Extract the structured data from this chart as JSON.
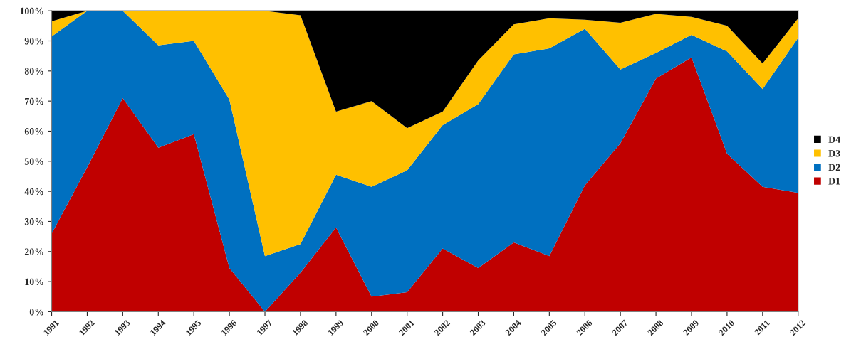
{
  "chart_data": {
    "type": "area",
    "stacked": true,
    "categories": [
      "1991",
      "1992",
      "1993",
      "1994",
      "1995",
      "1996",
      "1997",
      "1998",
      "1999",
      "2000",
      "2001",
      "2002",
      "2003",
      "2004",
      "2005",
      "2006",
      "2007",
      "2008",
      "2009",
      "2010",
      "2011",
      "2012"
    ],
    "series": [
      {
        "name": "D1",
        "color": "#c00000",
        "values": [
          26,
          48,
          71,
          54.5,
          59,
          14.5,
          0,
          13,
          28,
          5,
          6.5,
          21,
          14.5,
          23,
          18.5,
          42,
          56,
          77.5,
          84.5,
          52.5,
          41.5,
          39.5
        ]
      },
      {
        "name": "D2",
        "color": "#0070c0",
        "values": [
          65.5,
          52,
          29,
          34,
          31,
          56,
          18.5,
          9.5,
          17.5,
          36.5,
          40.5,
          41,
          54.5,
          62.5,
          69,
          52,
          24.5,
          8.5,
          7.5,
          34,
          32.5,
          51.5
        ]
      },
      {
        "name": "D3",
        "color": "#ffc000",
        "values": [
          5,
          0,
          0,
          11.5,
          10,
          29.5,
          81.5,
          76,
          21,
          28.5,
          14,
          4.5,
          14.5,
          10,
          10,
          3,
          15.5,
          13,
          6,
          8.5,
          8.5,
          6.5
        ]
      },
      {
        "name": "D4",
        "color": "#000000",
        "values": [
          3.5,
          0,
          0,
          0,
          0,
          0,
          0,
          1.5,
          33.5,
          30,
          39,
          33.5,
          16.5,
          4.5,
          2.5,
          3,
          4,
          1,
          2,
          5,
          17.5,
          2.5
        ]
      }
    ],
    "ylim": [
      0,
      100
    ],
    "yticks": [
      {
        "value": 0,
        "label": "0%"
      },
      {
        "value": 10,
        "label": "10%"
      },
      {
        "value": 20,
        "label": "20%"
      },
      {
        "value": 30,
        "label": "30%"
      },
      {
        "value": 40,
        "label": "40%"
      },
      {
        "value": 50,
        "label": "50%"
      },
      {
        "value": 60,
        "label": "60%"
      },
      {
        "value": 70,
        "label": "70%"
      },
      {
        "value": 80,
        "label": "80%"
      },
      {
        "value": 90,
        "label": "90%"
      },
      {
        "value": 100,
        "label": "100%"
      }
    ],
    "grid": false,
    "legend": "right"
  }
}
